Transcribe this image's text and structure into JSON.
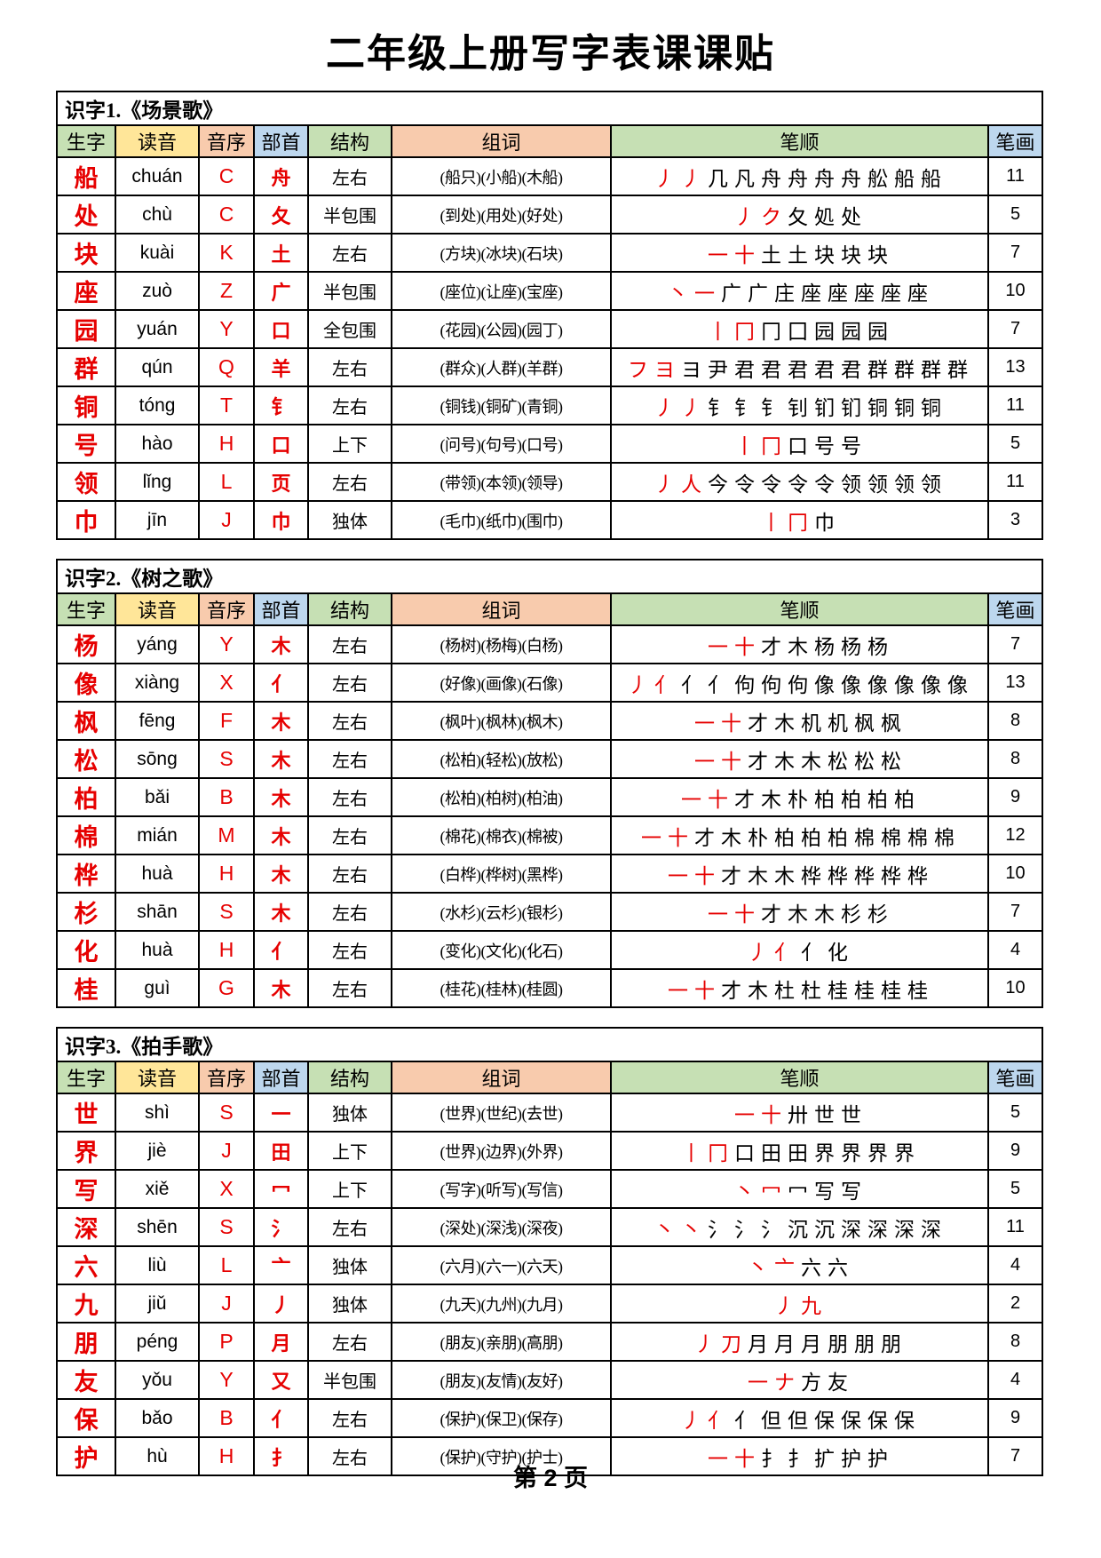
{
  "page": {
    "title": "二年级上册写字表课课贴",
    "footer": "第 2 页"
  },
  "colors": {
    "accent_red": "#e60000",
    "header_green": "#c6e0b4",
    "header_yellow": "#ffe699",
    "header_peach": "#f8cbad",
    "header_blue": "#bdd7ee"
  },
  "columns": [
    {
      "key": "char",
      "label": "生字",
      "bg": "#c6e0b4"
    },
    {
      "key": "pinyin",
      "label": "读音",
      "bg": "#ffe699"
    },
    {
      "key": "initial",
      "label": "音序",
      "bg": "#f8cbad"
    },
    {
      "key": "radical",
      "label": "部首",
      "bg": "#bdd7ee"
    },
    {
      "key": "structure",
      "label": "结构",
      "bg": "#c6e0b4"
    },
    {
      "key": "words",
      "label": "组词",
      "bg": "#f8cbad"
    },
    {
      "key": "strokes",
      "label": "笔顺",
      "bg": "#c6e0b4"
    },
    {
      "key": "count",
      "label": "笔画",
      "bg": "#bdd7ee"
    }
  ],
  "tables": [
    {
      "title": "识字1.《场景歌》",
      "rows": [
        {
          "char": "船",
          "pinyin": "chuán",
          "initial": "C",
          "radical": "舟",
          "structure": "左右",
          "words": "(船只)(小船)(木船)",
          "strokes": [
            "丿",
            "丿",
            "几",
            "凡",
            "舟",
            "舟",
            "舟",
            "舟",
            "舩",
            "船",
            "船"
          ],
          "count": "11"
        },
        {
          "char": "处",
          "pinyin": "chù",
          "initial": "C",
          "radical": "夂",
          "structure": "半包围",
          "words": "(到处)(用处)(好处)",
          "strokes": [
            "丿",
            "ク",
            "夂",
            "処",
            "处"
          ],
          "count": "5"
        },
        {
          "char": "块",
          "pinyin": "kuài",
          "initial": "K",
          "radical": "土",
          "structure": "左右",
          "words": "(方块)(冰块)(石块)",
          "strokes": [
            "一",
            "十",
            "土",
            "土",
            "块",
            "块",
            "块"
          ],
          "count": "7"
        },
        {
          "char": "座",
          "pinyin": "zuò",
          "initial": "Z",
          "radical": "广",
          "structure": "半包围",
          "words": "(座位)(让座)(宝座)",
          "strokes": [
            "丶",
            "一",
            "广",
            "广",
            "庄",
            "座",
            "座",
            "座",
            "座",
            "座"
          ],
          "count": "10"
        },
        {
          "char": "园",
          "pinyin": "yuán",
          "initial": "Y",
          "radical": "口",
          "structure": "全包围",
          "words": "(花园)(公园)(园丁)",
          "strokes": [
            "丨",
            "冂",
            "冂",
            "囗",
            "园",
            "园",
            "园"
          ],
          "count": "7"
        },
        {
          "char": "群",
          "pinyin": "qún",
          "initial": "Q",
          "radical": "羊",
          "structure": "左右",
          "words": "(群众)(人群)(羊群)",
          "strokes": [
            "フ",
            "ヨ",
            "ヨ",
            "尹",
            "君",
            "君",
            "君",
            "君",
            "君",
            "群",
            "群",
            "群",
            "群"
          ],
          "count": "13"
        },
        {
          "char": "铜",
          "pinyin": "tóng",
          "initial": "T",
          "radical": "钅",
          "structure": "左右",
          "words": "(铜钱)(铜矿)(青铜)",
          "strokes": [
            "丿",
            "丿",
            "钅",
            "钅",
            "钅",
            "钊",
            "钔",
            "钔",
            "铜",
            "铜",
            "铜"
          ],
          "count": "11"
        },
        {
          "char": "号",
          "pinyin": "hào",
          "initial": "H",
          "radical": "口",
          "structure": "上下",
          "words": "(问号)(句号)(口号)",
          "strokes": [
            "丨",
            "冂",
            "口",
            "号",
            "号"
          ],
          "count": "5"
        },
        {
          "char": "领",
          "pinyin": "lǐng",
          "initial": "L",
          "radical": "页",
          "structure": "左右",
          "words": "(带领)(本领)(领导)",
          "strokes": [
            "丿",
            "人",
            "今",
            "令",
            "令",
            "令",
            "令",
            "领",
            "领",
            "领",
            "领"
          ],
          "count": "11"
        },
        {
          "char": "巾",
          "pinyin": "jīn",
          "initial": "J",
          "radical": "巾",
          "structure": "独体",
          "words": "(毛巾)(纸巾)(围巾)",
          "strokes": [
            "丨",
            "冂",
            "巾"
          ],
          "count": "3"
        }
      ]
    },
    {
      "title": "识字2.《树之歌》",
      "rows": [
        {
          "char": "杨",
          "pinyin": "yáng",
          "initial": "Y",
          "radical": "木",
          "structure": "左右",
          "words": "(杨树)(杨梅)(白杨)",
          "strokes": [
            "一",
            "十",
            "才",
            "木",
            "杨",
            "杨",
            "杨"
          ],
          "count": "7"
        },
        {
          "char": "像",
          "pinyin": "xiàng",
          "initial": "X",
          "radical": "亻",
          "structure": "左右",
          "words": "(好像)(画像)(石像)",
          "strokes": [
            "丿",
            "亻",
            "亻",
            "亻",
            "佝",
            "佝",
            "佝",
            "像",
            "像",
            "像",
            "像",
            "像",
            "像"
          ],
          "count": "13"
        },
        {
          "char": "枫",
          "pinyin": "fēng",
          "initial": "F",
          "radical": "木",
          "structure": "左右",
          "words": "(枫叶)(枫林)(枫木)",
          "strokes": [
            "一",
            "十",
            "才",
            "木",
            "机",
            "机",
            "枫",
            "枫"
          ],
          "count": "8"
        },
        {
          "char": "松",
          "pinyin": "sōng",
          "initial": "S",
          "radical": "木",
          "structure": "左右",
          "words": "(松柏)(轻松)(放松)",
          "strokes": [
            "一",
            "十",
            "才",
            "木",
            "木",
            "松",
            "松",
            "松"
          ],
          "count": "8"
        },
        {
          "char": "柏",
          "pinyin": "bǎi",
          "initial": "B",
          "radical": "木",
          "structure": "左右",
          "words": "(松柏)(柏树)(柏油)",
          "strokes": [
            "一",
            "十",
            "才",
            "木",
            "朴",
            "柏",
            "柏",
            "柏",
            "柏"
          ],
          "count": "9"
        },
        {
          "char": "棉",
          "pinyin": "mián",
          "initial": "M",
          "radical": "木",
          "structure": "左右",
          "words": "(棉花)(棉衣)(棉被)",
          "strokes": [
            "一",
            "十",
            "才",
            "木",
            "朴",
            "柏",
            "柏",
            "柏",
            "棉",
            "棉",
            "棉",
            "棉"
          ],
          "count": "12"
        },
        {
          "char": "桦",
          "pinyin": "huà",
          "initial": "H",
          "radical": "木",
          "structure": "左右",
          "words": "(白桦)(桦树)(黑桦)",
          "strokes": [
            "一",
            "十",
            "才",
            "木",
            "木",
            "桦",
            "桦",
            "桦",
            "桦",
            "桦"
          ],
          "count": "10"
        },
        {
          "char": "杉",
          "pinyin": "shān",
          "initial": "S",
          "radical": "木",
          "structure": "左右",
          "words": "(水杉)(云杉)(银杉)",
          "strokes": [
            "一",
            "十",
            "才",
            "木",
            "木",
            "杉",
            "杉"
          ],
          "count": "7"
        },
        {
          "char": "化",
          "pinyin": "huà",
          "initial": "H",
          "radical": "亻",
          "structure": "左右",
          "words": "(变化)(文化)(化石)",
          "strokes": [
            "丿",
            "亻",
            "亻",
            "化"
          ],
          "count": "4"
        },
        {
          "char": "桂",
          "pinyin": "guì",
          "initial": "G",
          "radical": "木",
          "structure": "左右",
          "words": "(桂花)(桂林)(桂圆)",
          "strokes": [
            "一",
            "十",
            "才",
            "木",
            "杜",
            "杜",
            "桂",
            "桂",
            "桂",
            "桂"
          ],
          "count": "10"
        }
      ]
    },
    {
      "title": "识字3.《拍手歌》",
      "rows": [
        {
          "char": "世",
          "pinyin": "shì",
          "initial": "S",
          "radical": "一",
          "structure": "独体",
          "words": "(世界)(世纪)(去世)",
          "strokes": [
            "一",
            "十",
            "卅",
            "世",
            "世"
          ],
          "count": "5"
        },
        {
          "char": "界",
          "pinyin": "jiè",
          "initial": "J",
          "radical": "田",
          "structure": "上下",
          "words": "(世界)(边界)(外界)",
          "strokes": [
            "丨",
            "冂",
            "口",
            "田",
            "田",
            "界",
            "界",
            "界",
            "界"
          ],
          "count": "9"
        },
        {
          "char": "写",
          "pinyin": "xiě",
          "initial": "X",
          "radical": "冖",
          "structure": "上下",
          "words": "(写字)(听写)(写信)",
          "strokes": [
            "丶",
            "冖",
            "冖",
            "写",
            "写"
          ],
          "count": "5"
        },
        {
          "char": "深",
          "pinyin": "shēn",
          "initial": "S",
          "radical": "氵",
          "structure": "左右",
          "words": "(深处)(深浅)(深夜)",
          "strokes": [
            "丶",
            "丶",
            "氵",
            "氵",
            "氵",
            "沉",
            "沉",
            "深",
            "深",
            "深",
            "深"
          ],
          "count": "11"
        },
        {
          "char": "六",
          "pinyin": "liù",
          "initial": "L",
          "radical": "亠",
          "structure": "独体",
          "words": "(六月)(六一)(六天)",
          "strokes": [
            "丶",
            "亠",
            "六",
            "六"
          ],
          "count": "4"
        },
        {
          "char": "九",
          "pinyin": "jiǔ",
          "initial": "J",
          "radical": "丿",
          "structure": "独体",
          "words": "(九天)(九州)(九月)",
          "strokes": [
            "丿",
            "九"
          ],
          "count": "2"
        },
        {
          "char": "朋",
          "pinyin": "péng",
          "initial": "P",
          "radical": "月",
          "structure": "左右",
          "words": "(朋友)(亲朋)(高朋)",
          "strokes": [
            "丿",
            "刀",
            "月",
            "月",
            "月",
            "朋",
            "朋",
            "朋"
          ],
          "count": "8"
        },
        {
          "char": "友",
          "pinyin": "yǒu",
          "initial": "Y",
          "radical": "又",
          "structure": "半包围",
          "words": "(朋友)(友情)(友好)",
          "strokes": [
            "一",
            "ナ",
            "方",
            "友"
          ],
          "count": "4"
        },
        {
          "char": "保",
          "pinyin": "bǎo",
          "initial": "B",
          "radical": "亻",
          "structure": "左右",
          "words": "(保护)(保卫)(保存)",
          "strokes": [
            "丿",
            "亻",
            "亻",
            "但",
            "但",
            "保",
            "保",
            "保",
            "保"
          ],
          "count": "9"
        },
        {
          "char": "护",
          "pinyin": "hù",
          "initial": "H",
          "radical": "扌",
          "structure": "左右",
          "words": "(保护)(守护)(护士)",
          "strokes": [
            "一",
            "十",
            "扌",
            "扌",
            "扩",
            "护",
            "护"
          ],
          "count": "7"
        }
      ]
    }
  ]
}
